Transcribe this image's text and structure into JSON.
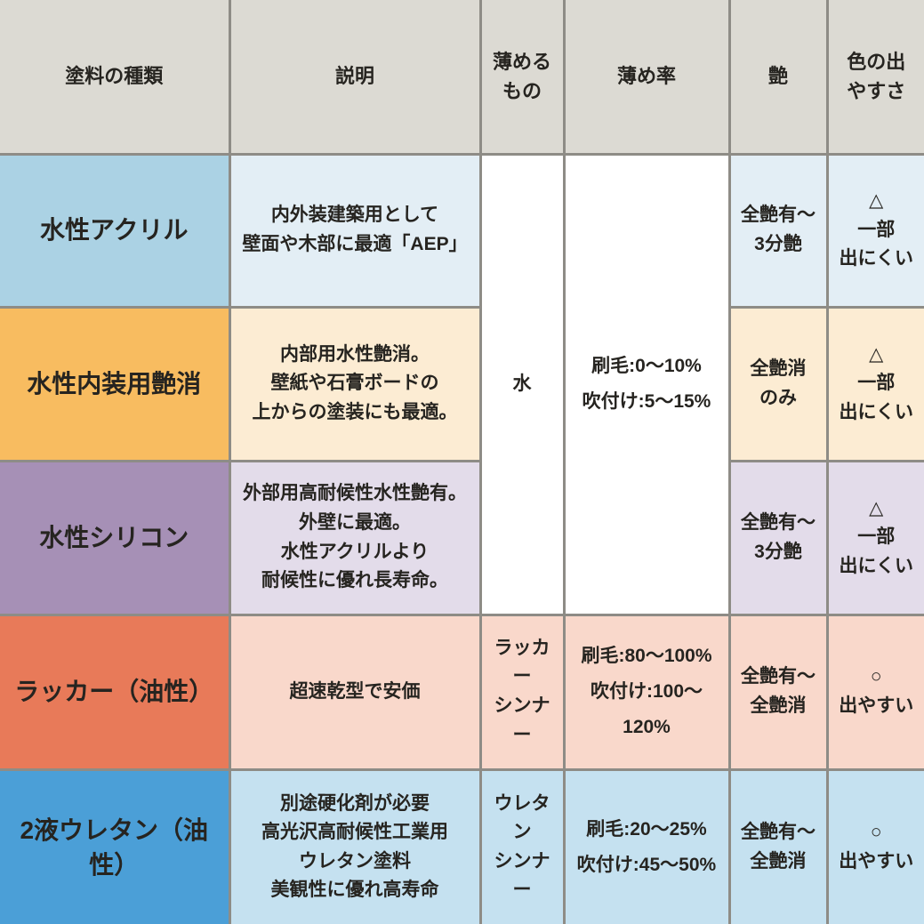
{
  "table": {
    "border_color": "#8e8c86",
    "header": {
      "bg": "#dcdad3",
      "paint_type": "塗料の種類",
      "description": "説明",
      "thinner": "薄める\nもの",
      "ratio": "薄め率",
      "gloss": "艶",
      "color_ease": "色の出\nやすさ"
    },
    "merged_water": {
      "bg": "#ffffff",
      "thinner": "水",
      "ratio": "刷毛:0～10%\n吹付け:5～15%"
    },
    "rows": [
      {
        "name": "水性アクリル",
        "description": "内外装建築用として\n壁面や木部に最適「AEP」",
        "gloss": "全艶有～\n3分艶",
        "color_ease": "△\n一部\n出にくい",
        "name_bg": "#abd2e4",
        "cell_bg": "#e3eef5"
      },
      {
        "name": "水性内装用艶消",
        "description": "内部用水性艶消。\n壁紙や石膏ボードの\n上からの塗装にも最適。",
        "gloss": "全艶消\nのみ",
        "color_ease": "△\n一部\n出にくい",
        "name_bg": "#f8bc60",
        "cell_bg": "#fcecd3"
      },
      {
        "name": "水性シリコン",
        "description": "外部用高耐候性水性艶有。\n外壁に最適。\n水性アクリルより\n耐候性に優れ長寿命。",
        "gloss": "全艶有～\n3分艶",
        "color_ease": "△\n一部\n出にくい",
        "name_bg": "#a690b6",
        "cell_bg": "#e3dcea"
      },
      {
        "name": "ラッカー（油性）",
        "description": "超速乾型で安価",
        "thinner": "ラッカー\nシンナー",
        "ratio": "刷毛:80～100%\n吹付け:100～120%",
        "gloss": "全艶有～\n全艶消",
        "color_ease": "○\n出やすい",
        "name_bg": "#e87a59",
        "cell_bg": "#f9d8cb"
      },
      {
        "name": "2液ウレタン（油性）",
        "description": "別途硬化剤が必要\n高光沢高耐候性工業用\nウレタン塗料\n美観性に優れ高寿命",
        "thinner": "ウレタン\nシンナー",
        "ratio": "刷毛:20～25%\n吹付け:45～50%",
        "gloss": "全艶有～\n全艶消",
        "color_ease": "○\n出やすい",
        "name_bg": "#4b9fd7",
        "cell_bg": "#c5e1f0"
      }
    ]
  }
}
